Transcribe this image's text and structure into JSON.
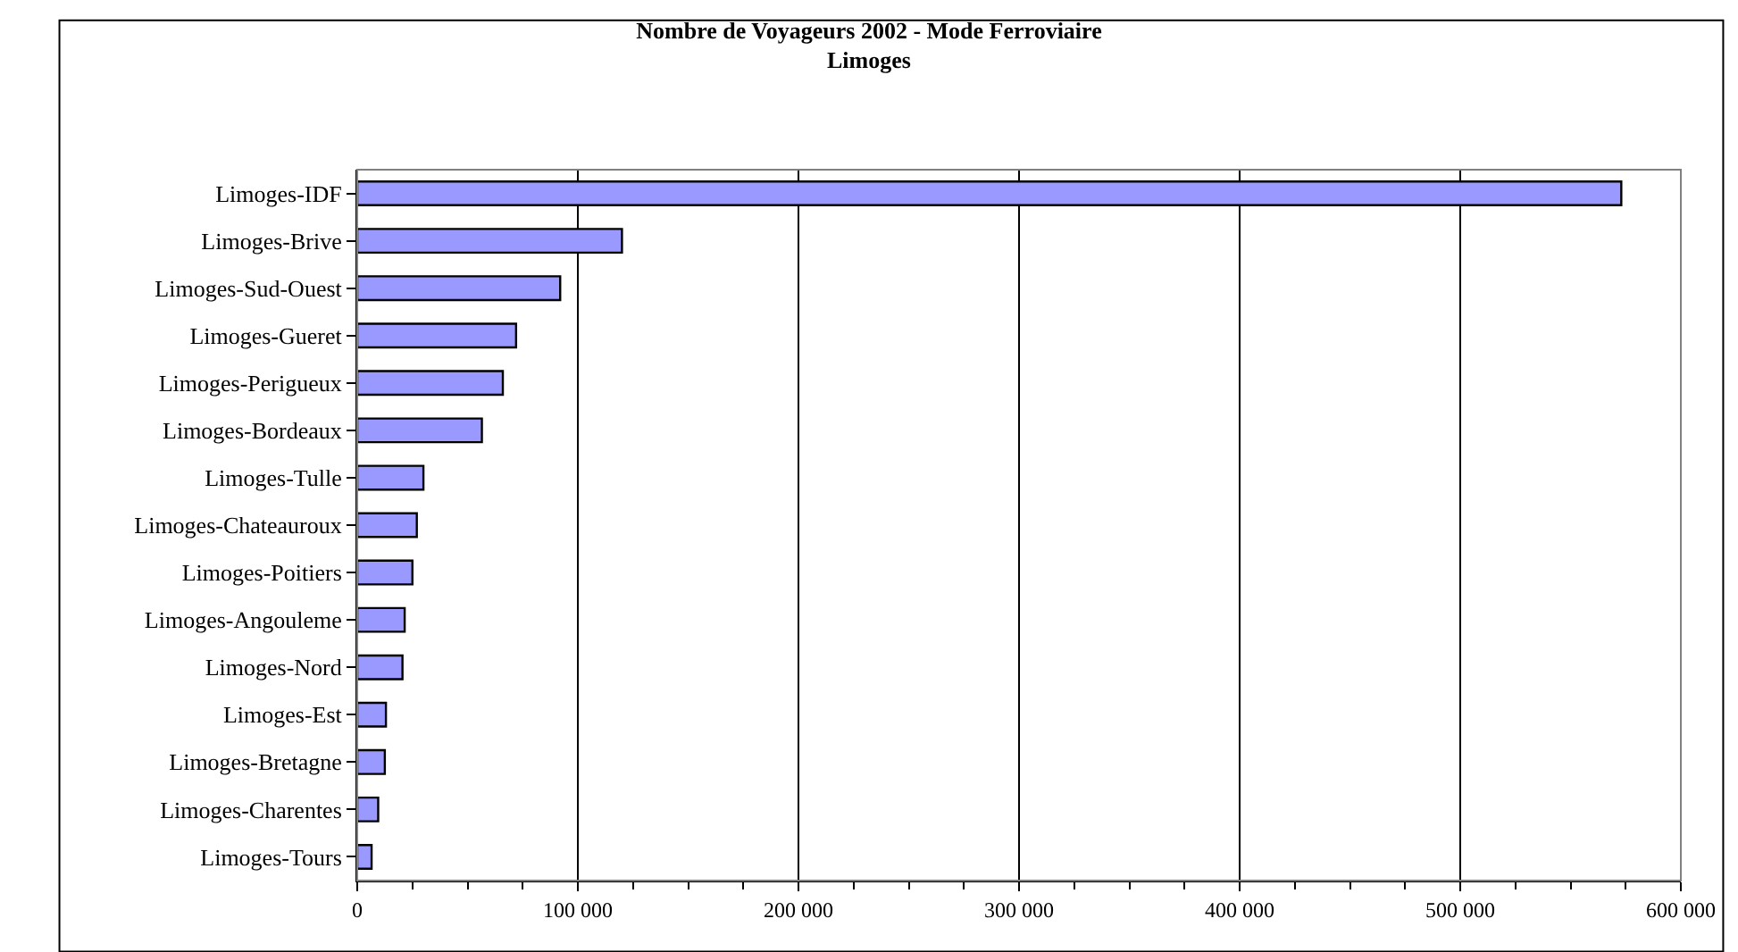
{
  "chart_data": {
    "type": "bar",
    "orientation": "horizontal",
    "title": "Nombre de Voyageurs 2002 - Mode Ferroviaire",
    "subtitle": "Limoges",
    "categories": [
      "Limoges-IDF",
      "Limoges-Brive",
      "Limoges-Sud-Ouest",
      "Limoges-Gueret",
      "Limoges-Perigueux",
      "Limoges-Bordeaux",
      "Limoges-Tulle",
      "Limoges-Chateauroux",
      "Limoges-Poitiers",
      "Limoges-Angouleme",
      "Limoges-Nord",
      "Limoges-Est",
      "Limoges-Bretagne",
      "Limoges-Charentes",
      "Limoges-Tours"
    ],
    "values": [
      573000,
      120000,
      92000,
      72000,
      66000,
      56500,
      30000,
      27000,
      25000,
      21500,
      20500,
      13000,
      12500,
      9500,
      6500
    ],
    "color": "#9999ff",
    "xlim": [
      0,
      600000
    ],
    "xticks": [
      0,
      {
        "value": 100000,
        "label": "100 000"
      },
      {
        "value": 200000,
        "label": "200 000"
      },
      {
        "value": 300000,
        "label": "300 000"
      },
      {
        "value": 400000,
        "label": "400 000"
      },
      {
        "value": 500000,
        "label": "500 000"
      },
      {
        "value": 600000,
        "label": "600 000"
      }
    ],
    "grid": "x",
    "legend": false
  }
}
